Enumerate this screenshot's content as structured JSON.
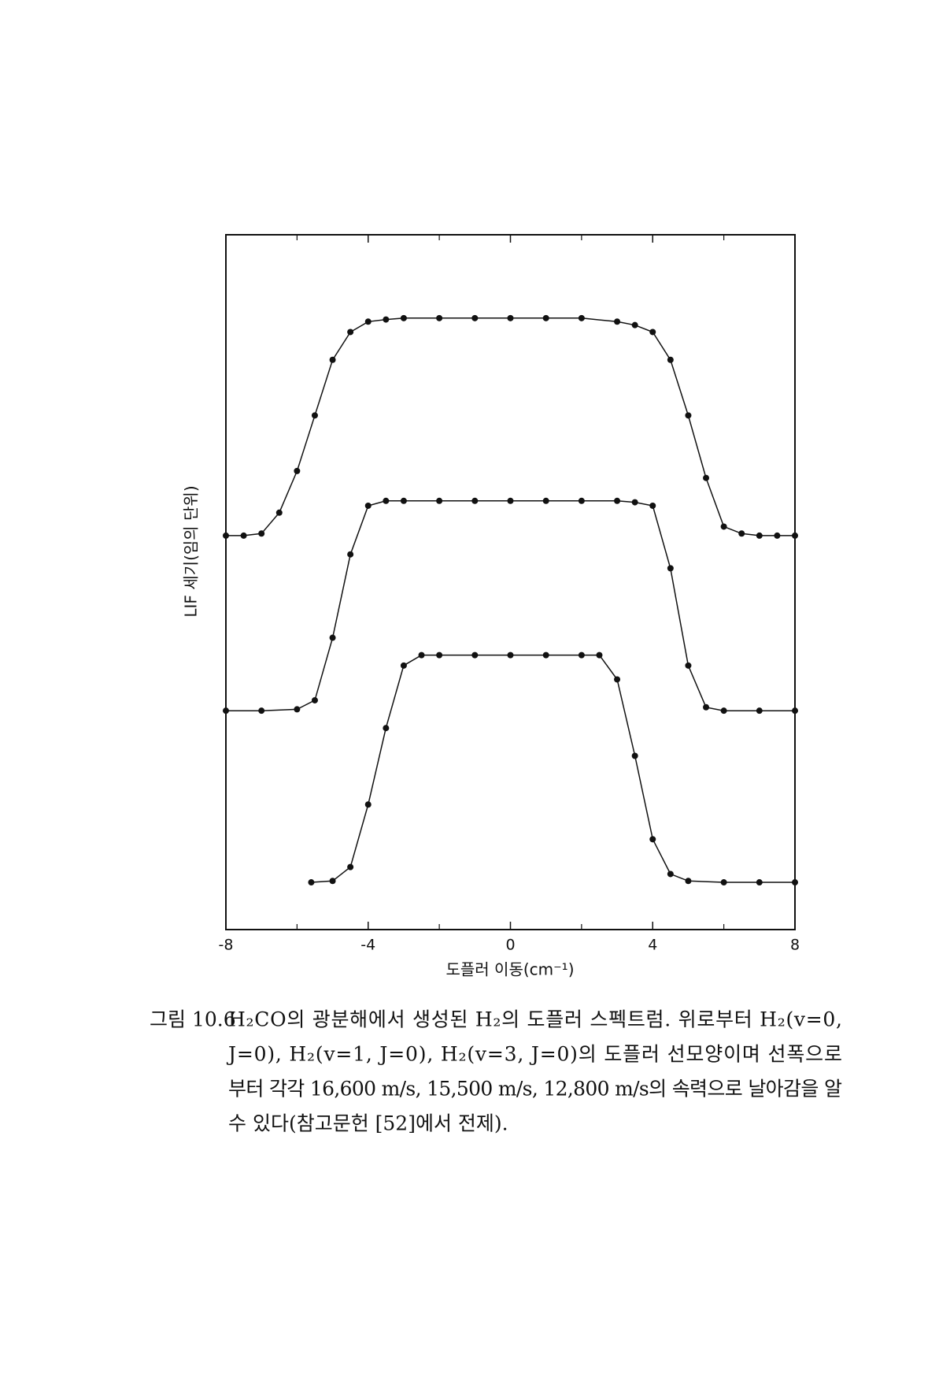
{
  "chart_data": {
    "type": "line",
    "xlabel": "도플러 이동(cm⁻¹)",
    "ylabel": "LIF 세기(임의 단위)",
    "xlim": [
      -8,
      8
    ],
    "xticks": [
      -8,
      -4,
      0,
      4,
      8
    ],
    "xminor": [
      -6,
      -2,
      2,
      6
    ],
    "ylim": [
      0,
      10
    ],
    "series": [
      {
        "name": "H₂(v=0, J=0)",
        "color": "#111111",
        "x": [
          -8,
          -7.5,
          -7,
          -6.5,
          -6,
          -5.5,
          -5,
          -4.5,
          -4,
          -3.5,
          -3,
          -2,
          -1,
          0,
          1,
          2,
          3,
          3.5,
          4,
          4.5,
          5,
          5.5,
          6,
          6.5,
          7,
          7.5,
          8
        ],
        "values": [
          5.67,
          5.67,
          5.7,
          6.0,
          6.6,
          7.4,
          8.2,
          8.6,
          8.75,
          8.78,
          8.8,
          8.8,
          8.8,
          8.8,
          8.8,
          8.8,
          8.75,
          8.7,
          8.6,
          8.2,
          7.4,
          6.5,
          5.8,
          5.7,
          5.67,
          5.67,
          5.67
        ]
      },
      {
        "name": "H₂(v=1, J=0)",
        "color": "#111111",
        "x": [
          -8,
          -7,
          -6,
          -5.5,
          -5,
          -4.5,
          -4,
          -3.5,
          -3,
          -2,
          -1,
          0,
          1,
          2,
          3,
          3.5,
          4,
          4.5,
          5,
          5.5,
          6,
          7,
          8
        ],
        "values": [
          3.15,
          3.15,
          3.17,
          3.3,
          4.2,
          5.4,
          6.1,
          6.17,
          6.17,
          6.17,
          6.17,
          6.17,
          6.17,
          6.17,
          6.17,
          6.15,
          6.1,
          5.2,
          3.8,
          3.2,
          3.15,
          3.15,
          3.15
        ]
      },
      {
        "name": "H₂(v=3, J=0)",
        "color": "#111111",
        "x": [
          -5.6,
          -5,
          -4.5,
          -4,
          -3.5,
          -3,
          -2.5,
          -2,
          -1,
          0,
          1,
          2,
          2.5,
          3,
          3.5,
          4,
          4.5,
          5,
          6,
          7,
          8
        ],
        "values": [
          0.68,
          0.7,
          0.9,
          1.8,
          2.9,
          3.8,
          3.95,
          3.95,
          3.95,
          3.95,
          3.95,
          3.95,
          3.95,
          3.6,
          2.5,
          1.3,
          0.8,
          0.7,
          0.68,
          0.68,
          0.68
        ]
      }
    ],
    "caption": {
      "label": "그림 10.6",
      "lines": [
        "H₂CO의 광분해에서 생성된 H₂의 도플러 스펙트럼. 위로부터 H₂(v=0,",
        "J=0), H₂(v=1, J=0), H₂(v=3, J=0)의 도플러 선모양이며 선폭으로",
        "부터 각각 16,600 m/s, 15,500 m/s, 12,800 m/s의 속력으로 날아감을 알",
        "수 있다(참고문헌 [52]에서 전제)."
      ]
    }
  }
}
